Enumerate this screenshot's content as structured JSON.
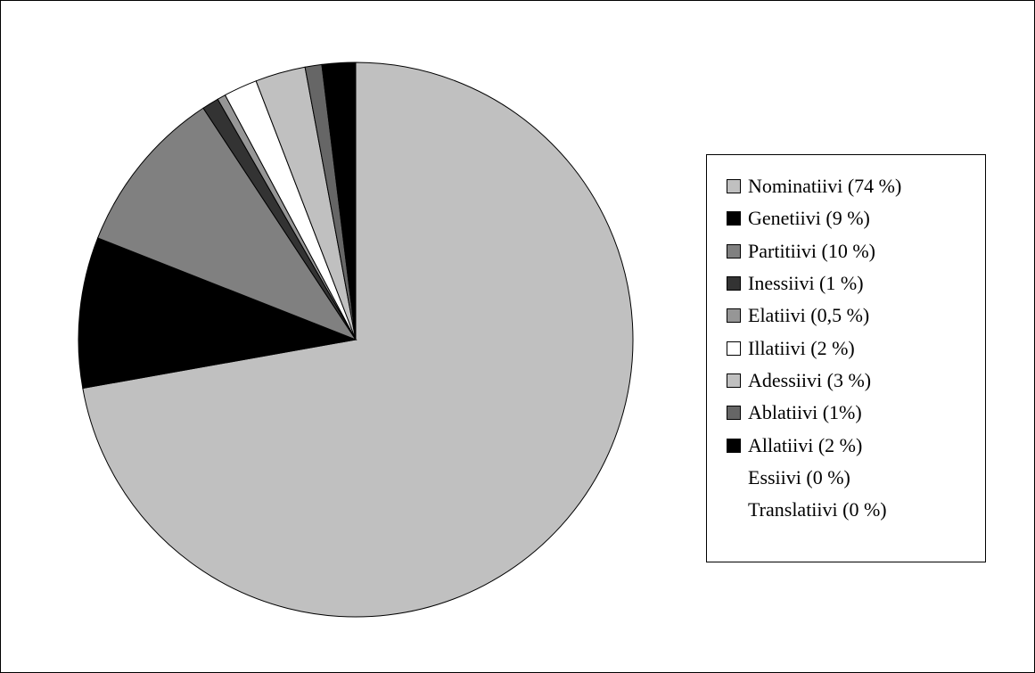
{
  "chart_data": {
    "type": "pie",
    "title": "",
    "start_angle_deg": 0,
    "direction": "clockwise",
    "legend_position": "right",
    "slices": [
      {
        "label": "Nominatiivi (74 %)",
        "value": 74,
        "color": "#c0c0c0"
      },
      {
        "label": "Genetiivi (9 %)",
        "value": 9,
        "color": "#000000"
      },
      {
        "label": "Partitiivi (10 %)",
        "value": 10,
        "color": "#808080"
      },
      {
        "label": "Inessiivi (1 %)",
        "value": 1,
        "color": "#333333"
      },
      {
        "label": "Elatiivi (0,5 %)",
        "value": 0.5,
        "color": "#969696"
      },
      {
        "label": "Illatiivi (2 %)",
        "value": 2,
        "color": "#ffffff"
      },
      {
        "label": "Adessiivi (3 %)",
        "value": 3,
        "color": "#c0c0c0"
      },
      {
        "label": "Ablatiivi (1%)",
        "value": 1,
        "color": "#666666"
      },
      {
        "label": "Allatiivi (2 %)",
        "value": 2,
        "color": "#000000"
      },
      {
        "label": "Essiivi (0 %)",
        "value": 0,
        "color": ""
      },
      {
        "label": "Translatiivi (0 %)",
        "value": 0,
        "color": ""
      }
    ]
  }
}
